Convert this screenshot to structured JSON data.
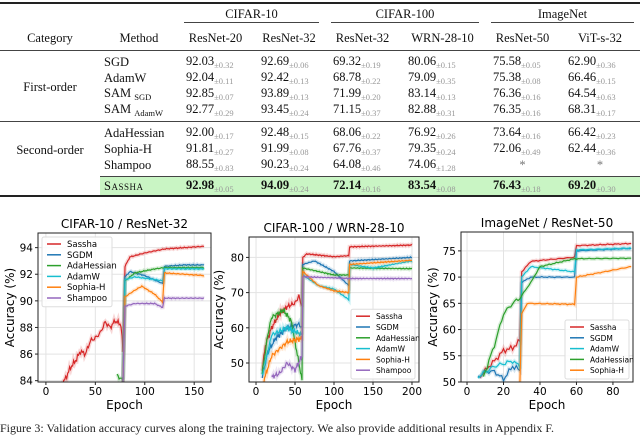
{
  "table": {
    "group_headers": [
      "CIFAR-10",
      "CIFAR-100",
      "ImageNet"
    ],
    "col_headers": [
      "Category",
      "Method",
      "ResNet-20",
      "ResNet-32",
      "ResNet-32",
      "WRN-28-10",
      "ResNet-50",
      "ViT-s-32"
    ],
    "groups": [
      {
        "category": "First-order",
        "rows": [
          {
            "method": "SGD",
            "sub": "",
            "values": [
              [
                "92.03",
                "±0.32"
              ],
              [
                "92.69",
                "±0.06"
              ],
              [
                "69.32",
                "±0.19"
              ],
              [
                "80.06",
                "±0.15"
              ],
              [
                "75.58",
                "±0.05"
              ],
              [
                "62.90",
                "±0.36"
              ]
            ]
          },
          {
            "method": "AdamW",
            "sub": "",
            "values": [
              [
                "92.04",
                "±0.11"
              ],
              [
                "92.42",
                "±0.13"
              ],
              [
                "68.78",
                "±0.22"
              ],
              [
                "79.09",
                "±0.35"
              ],
              [
                "75.38",
                "±0.08"
              ],
              [
                "66.46",
                "±0.15"
              ]
            ]
          },
          {
            "method": "SAM",
            "sub": "SGD",
            "values": [
              [
                "92.85",
                "±0.07"
              ],
              [
                "93.89",
                "±0.13"
              ],
              [
                "71.99",
                "±0.20"
              ],
              [
                "83.14",
                "±0.13"
              ],
              [
                "76.36",
                "±0.16"
              ],
              [
                "64.54",
                "±0.63"
              ]
            ]
          },
          {
            "method": "SAM",
            "sub": "AdamW",
            "values": [
              [
                "92.77",
                "±0.29"
              ],
              [
                "93.45",
                "±0.24"
              ],
              [
                "71.15",
                "±0.37"
              ],
              [
                "82.88",
                "±0.31"
              ],
              [
                "76.35",
                "±0.16"
              ],
              [
                "68.31",
                "±0.17"
              ]
            ]
          }
        ]
      },
      {
        "category": "Second-order",
        "rows": [
          {
            "method": "AdaHessian",
            "sub": "",
            "values": [
              [
                "92.00",
                "±0.17"
              ],
              [
                "92.48",
                "±0.15"
              ],
              [
                "68.06",
                "±0.22"
              ],
              [
                "76.92",
                "±0.26"
              ],
              [
                "73.64",
                "±0.16"
              ],
              [
                "66.42",
                "±0.23"
              ]
            ]
          },
          {
            "method": "Sophia-H",
            "sub": "",
            "values": [
              [
                "91.81",
                "±0.27"
              ],
              [
                "91.99",
                "±0.08"
              ],
              [
                "67.76",
                "±0.37"
              ],
              [
                "79.35",
                "±0.24"
              ],
              [
                "72.06",
                "±0.49"
              ],
              [
                "62.44",
                "±0.36"
              ]
            ]
          },
          {
            "method": "Shampoo",
            "sub": "",
            "values": [
              [
                "88.55",
                "±0.83"
              ],
              [
                "90.23",
                "±0.24"
              ],
              [
                "64.08",
                "±0.46"
              ],
              [
                "74.06",
                "±1.28"
              ],
              [
                "*",
                ""
              ],
              [
                "*",
                ""
              ]
            ]
          }
        ]
      }
    ],
    "highlight": {
      "method": "Sassha",
      "values": [
        [
          "92.98",
          "±0.05"
        ],
        [
          "94.09",
          "±0.24"
        ],
        [
          "72.14",
          "±0.16"
        ],
        [
          "83.54",
          "±0.08"
        ],
        [
          "76.43",
          "±0.18"
        ],
        [
          "69.20",
          "±0.30"
        ]
      ],
      "color": "#c9f5c4"
    }
  },
  "caption": "Figure 3: Validation accuracy curves along the training trajectory. We also provide additional results in Appendix F.",
  "colors": {
    "Sassha": "#d62728",
    "SGDM": "#1f77b4",
    "AdaHessian": "#2ca02c",
    "AdamW": "#17becf",
    "Sophia-H": "#ff7f0e",
    "Shampoo": "#9467bd"
  },
  "chart_data": [
    {
      "type": "line",
      "title": "CIFAR-10 / ResNet-32",
      "xlabel": "Epoch",
      "ylabel": "Accuracy (%)",
      "xlim": [
        -8,
        167
      ],
      "ylim": [
        83.9,
        95.1
      ],
      "xticks": [
        0,
        50,
        100,
        150
      ],
      "yticks": [
        84,
        86,
        88,
        90,
        92,
        94
      ],
      "grid": true,
      "legend": "top-left",
      "series": [
        {
          "name": "Sassha",
          "points": [
            [
              15,
              83.5
            ],
            [
              20,
              84.2
            ],
            [
              25,
              85
            ],
            [
              30,
              85.5
            ],
            [
              35,
              86.2
            ],
            [
              40,
              86
            ],
            [
              45,
              87
            ],
            [
              50,
              87.2
            ],
            [
              55,
              87.6
            ],
            [
              60,
              88.4
            ],
            [
              65,
              88
            ],
            [
              70,
              88.5
            ],
            [
              76,
              88.2
            ],
            [
              78,
              86.2
            ],
            [
              80,
              92.6
            ],
            [
              85,
              93.3
            ],
            [
              100,
              93.6
            ],
            [
              120,
              93.9
            ],
            [
              140,
              94
            ],
            [
              160,
              94.1
            ]
          ]
        },
        {
          "name": "SGDM",
          "points": [
            [
              78,
              84
            ],
            [
              80,
              91.8
            ],
            [
              85,
              92.2
            ],
            [
              100,
              91.9
            ],
            [
              118,
              91.3
            ],
            [
              120,
              92.6
            ],
            [
              140,
              92.7
            ],
            [
              160,
              92.7
            ]
          ]
        },
        {
          "name": "AdaHessian",
          "points": [
            [
              72,
              84.4
            ],
            [
              78,
              84
            ],
            [
              80,
              91.5
            ],
            [
              90,
              92.1
            ],
            [
              110,
              92.4
            ],
            [
              120,
              92.5
            ],
            [
              160,
              92.5
            ]
          ]
        },
        {
          "name": "AdamW",
          "points": [
            [
              78,
              84
            ],
            [
              80,
              91.6
            ],
            [
              90,
              91.8
            ],
            [
              110,
              91.6
            ],
            [
              119,
              91.5
            ],
            [
              120,
              92.4
            ],
            [
              160,
              92.4
            ]
          ]
        },
        {
          "name": "Sophia-H",
          "points": [
            [
              78,
              84
            ],
            [
              80,
              90.3
            ],
            [
              90,
              90.8
            ],
            [
              97,
              91.1
            ],
            [
              110,
              90.5
            ],
            [
              118,
              89.9
            ],
            [
              120,
              92.1
            ],
            [
              160,
              91.9
            ]
          ]
        },
        {
          "name": "Shampoo",
          "points": [
            [
              78,
              84
            ],
            [
              80,
              89.6
            ],
            [
              90,
              89.8
            ],
            [
              110,
              89.8
            ],
            [
              118,
              89.5
            ],
            [
              120,
              90.2
            ],
            [
              160,
              90.2
            ]
          ]
        }
      ]
    },
    {
      "type": "line",
      "title": "CIFAR-100 / WRN-28-10",
      "xlabel": "Epoch",
      "ylabel": "Accuracy (%)",
      "xlim": [
        -9,
        209
      ],
      "ylim": [
        44.6,
        85.8
      ],
      "xticks": [
        0,
        50,
        100,
        150,
        200
      ],
      "yticks": [
        50,
        60,
        70,
        80
      ],
      "grid": true,
      "legend": "bottom-right",
      "series": [
        {
          "name": "Sassha",
          "points": [
            [
              8,
              48
            ],
            [
              12,
              55
            ],
            [
              20,
              60
            ],
            [
              30,
              64
            ],
            [
              40,
              66
            ],
            [
              50,
              67
            ],
            [
              55,
              69
            ],
            [
              59,
              66
            ],
            [
              60,
              80
            ],
            [
              65,
              81
            ],
            [
              100,
              80.2
            ],
            [
              119,
              80.5
            ],
            [
              120,
              83
            ],
            [
              200,
              83.5
            ]
          ]
        },
        {
          "name": "SGDM",
          "points": [
            [
              8,
              46
            ],
            [
              15,
              53
            ],
            [
              25,
              57
            ],
            [
              40,
              60
            ],
            [
              55,
              61
            ],
            [
              59,
              60
            ],
            [
              60,
              78
            ],
            [
              75,
              79
            ],
            [
              100,
              76
            ],
            [
              119,
              72
            ],
            [
              120,
              79
            ],
            [
              200,
              80
            ]
          ]
        },
        {
          "name": "AdaHessian",
          "points": [
            [
              8,
              47
            ],
            [
              15,
              58
            ],
            [
              20,
              63
            ],
            [
              35,
              65
            ],
            [
              45,
              62
            ],
            [
              55,
              50
            ],
            [
              59,
              45
            ],
            [
              60,
              77
            ],
            [
              100,
              75
            ],
            [
              119,
              75
            ],
            [
              120,
              77
            ],
            [
              200,
              76.8
            ]
          ]
        },
        {
          "name": "AdamW",
          "points": [
            [
              8,
              46
            ],
            [
              20,
              58
            ],
            [
              40,
              60
            ],
            [
              59,
              58
            ],
            [
              60,
              75
            ],
            [
              80,
              72
            ],
            [
              100,
              71
            ],
            [
              119,
              68
            ],
            [
              120,
              78
            ],
            [
              150,
              77
            ],
            [
              200,
              79
            ]
          ]
        },
        {
          "name": "Sophia-H",
          "points": [
            [
              10,
              45
            ],
            [
              20,
              52
            ],
            [
              40,
              56
            ],
            [
              59,
              57
            ],
            [
              60,
              76
            ],
            [
              80,
              72
            ],
            [
              100,
              70.5
            ],
            [
              119,
              70
            ],
            [
              120,
              78
            ],
            [
              200,
              79.2
            ]
          ]
        },
        {
          "name": "Shampoo",
          "points": [
            [
              20,
              46
            ],
            [
              30,
              47
            ],
            [
              40,
              50
            ],
            [
              50,
              48
            ],
            [
              59,
              52
            ],
            [
              60,
              74.5
            ],
            [
              100,
              74.2
            ],
            [
              120,
              74
            ],
            [
              200,
              74
            ]
          ]
        }
      ]
    },
    {
      "type": "line",
      "title": "ImageNet / ResNet-50",
      "xlabel": "Epoch",
      "ylabel": "Accuracy (%)",
      "xlim": [
        -3.3,
        91
      ],
      "ylim": [
        50,
        78.6
      ],
      "xticks": [
        0,
        20,
        40,
        60,
        80
      ],
      "yticks": [
        50,
        55,
        60,
        65,
        70,
        75
      ],
      "grid": true,
      "legend": "bottom-right",
      "series": [
        {
          "name": "Sassha",
          "points": [
            [
              7,
              51
            ],
            [
              12,
              53
            ],
            [
              15,
              54
            ],
            [
              20,
              56
            ],
            [
              25,
              56.5
            ],
            [
              28,
              57.5
            ],
            [
              29,
              58
            ],
            [
              30,
              71
            ],
            [
              35,
              73
            ],
            [
              59,
              73.8
            ],
            [
              60,
              76
            ],
            [
              90,
              76.4
            ]
          ]
        },
        {
          "name": "SGDM",
          "points": [
            [
              6,
              51
            ],
            [
              10,
              52
            ],
            [
              15,
              52
            ],
            [
              20,
              50.5
            ],
            [
              25,
              53
            ],
            [
              28,
              52.5
            ],
            [
              29,
              52
            ],
            [
              30,
              69
            ],
            [
              35,
              70
            ],
            [
              59,
              70
            ],
            [
              60,
              75
            ],
            [
              90,
              75.5
            ]
          ]
        },
        {
          "name": "AdamW",
          "points": [
            [
              6,
              51
            ],
            [
              15,
              53
            ],
            [
              25,
              54
            ],
            [
              29,
              53
            ],
            [
              30,
              70
            ],
            [
              35,
              72
            ],
            [
              59,
              71
            ],
            [
              60,
              75.2
            ],
            [
              90,
              75.5
            ]
          ]
        },
        {
          "name": "AdaHessian",
          "points": [
            [
              9,
              51
            ],
            [
              15,
              57
            ],
            [
              20,
              63
            ],
            [
              25,
              65
            ],
            [
              29,
              66
            ],
            [
              35,
              69
            ],
            [
              40,
              72
            ],
            [
              59,
              73.5
            ],
            [
              90,
              73.6
            ]
          ]
        },
        {
          "name": "Sophia-H",
          "points": [
            [
              29,
              50
            ],
            [
              30,
              63
            ],
            [
              33,
              65
            ],
            [
              59,
              64.8
            ],
            [
              60,
              70
            ],
            [
              90,
              72
            ]
          ]
        }
      ]
    }
  ]
}
